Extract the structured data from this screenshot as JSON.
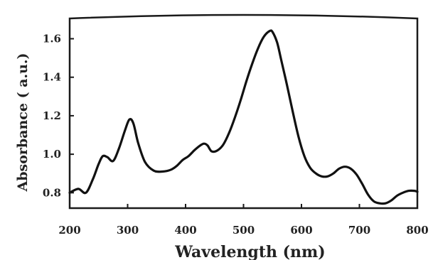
{
  "chart_data": {
    "type": "line",
    "title": "",
    "xlabel": "Wavelength (nm)",
    "ylabel": "Absorbance ( a.u.)",
    "xlim": [
      200,
      800
    ],
    "ylim": [
      0.72,
      1.72
    ],
    "xticks": [
      200,
      300,
      400,
      500,
      600,
      700,
      800
    ],
    "yticks": [
      0.8,
      1.0,
      1.2,
      1.4,
      1.6
    ],
    "ytick_labels": [
      "0.8",
      "1.0",
      "1.2",
      "1.4",
      "1.6"
    ],
    "grid": false,
    "series": [
      {
        "x": [
          200,
          215,
          228,
          240,
          250,
          257,
          265,
          275,
          285,
          295,
          303,
          310,
          318,
          330,
          345,
          360,
          375,
          385,
          395,
          405,
          415,
          425,
          432,
          438,
          445,
          455,
          465,
          475,
          485,
          495,
          505,
          515,
          525,
          535,
          545,
          550,
          558,
          565,
          575,
          585,
          595,
          605,
          615,
          625,
          635,
          645,
          655,
          665,
          675,
          685,
          695,
          705,
          715,
          725,
          735,
          745,
          755,
          765,
          775,
          785,
          795,
          800
        ],
        "y": [
          0.8,
          0.82,
          0.8,
          0.87,
          0.95,
          0.99,
          0.985,
          0.965,
          1.03,
          1.12,
          1.18,
          1.16,
          1.06,
          0.96,
          0.915,
          0.91,
          0.92,
          0.94,
          0.97,
          0.99,
          1.02,
          1.045,
          1.055,
          1.045,
          1.015,
          1.02,
          1.05,
          1.11,
          1.19,
          1.28,
          1.38,
          1.47,
          1.55,
          1.61,
          1.64,
          1.635,
          1.58,
          1.49,
          1.36,
          1.22,
          1.09,
          0.99,
          0.93,
          0.9,
          0.885,
          0.885,
          0.9,
          0.925,
          0.935,
          0.925,
          0.895,
          0.845,
          0.79,
          0.755,
          0.745,
          0.745,
          0.76,
          0.785,
          0.8,
          0.81,
          0.81,
          0.805
        ]
      }
    ]
  }
}
